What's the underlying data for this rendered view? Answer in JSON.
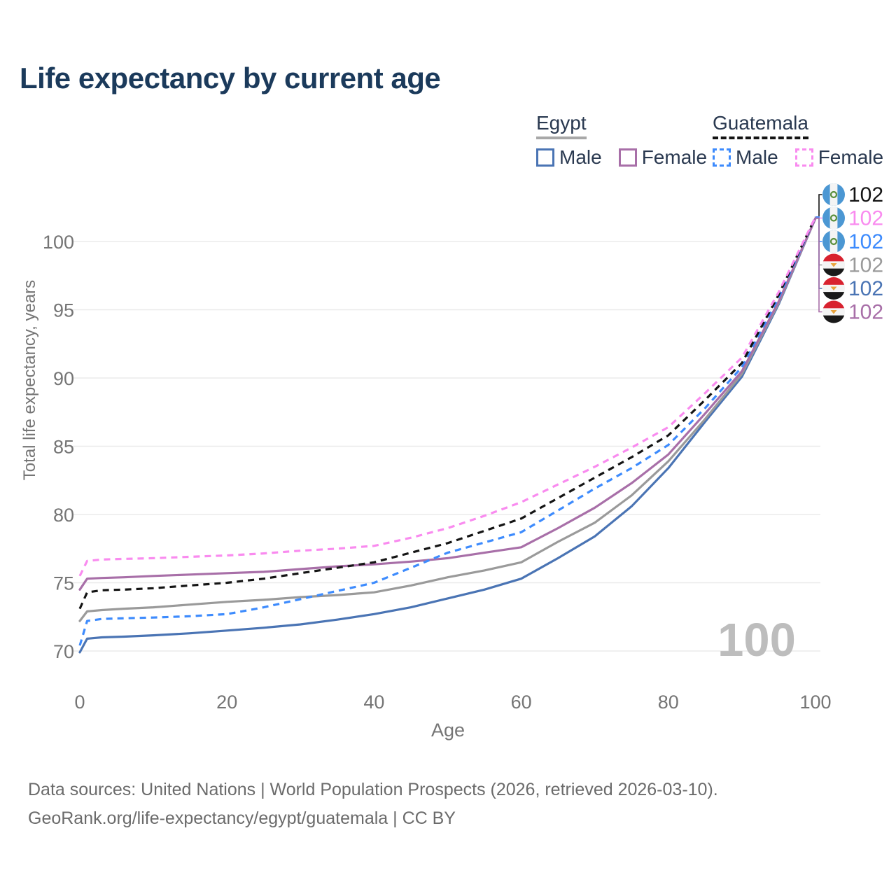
{
  "title": "Life expectancy by current age",
  "colors": {
    "title_text": "#1b3a5b",
    "legend_text": "#2a3950",
    "axis_text": "#757575",
    "grid": "#ebebeb",
    "watermark": "#bdbdbd",
    "footer_text": "#6b6b6b"
  },
  "legend": {
    "groups": [
      {
        "label": "Egypt",
        "underline_style": "solid",
        "underline_color": "#a8a8a8",
        "items": [
          {
            "label": "Male",
            "series": "egypt_male"
          },
          {
            "label": "Female",
            "series": "egypt_female"
          }
        ]
      },
      {
        "label": "Guatemala",
        "underline_style": "dashed",
        "underline_color": "#141414",
        "items": [
          {
            "label": "Male",
            "series": "guatemala_male"
          },
          {
            "label": "Female",
            "series": "guatemala_female"
          }
        ]
      }
    ]
  },
  "chart_data": {
    "type": "line",
    "title": "Life expectancy by current age",
    "xlabel": "Age",
    "ylabel": "Total life expectancy, years",
    "x_ticks": [
      0,
      20,
      40,
      60,
      80,
      100
    ],
    "y_ticks": [
      70,
      75,
      80,
      85,
      90,
      95,
      100
    ],
    "xlim": [
      0,
      100
    ],
    "ylim": [
      68.5,
      102.5
    ],
    "grid": "horizontal",
    "legend_position": "top-right",
    "watermark": "100",
    "ages": [
      0,
      1,
      3,
      6,
      10,
      15,
      20,
      25,
      30,
      35,
      40,
      45,
      50,
      55,
      60,
      65,
      70,
      75,
      80,
      85,
      90,
      95,
      100
    ],
    "series": [
      {
        "id": "egypt_male",
        "name": "Egypt Male",
        "country": "Egypt",
        "sex": "Male",
        "color": "#4a74b4",
        "line_style": "solid",
        "end_label": "102",
        "values": [
          69.9,
          70.9,
          71.0,
          71.05,
          71.15,
          71.3,
          71.5,
          71.7,
          71.95,
          72.3,
          72.7,
          73.2,
          73.85,
          74.5,
          75.3,
          76.8,
          78.4,
          80.6,
          83.4,
          86.8,
          90.1,
          95.4,
          101.7
        ]
      },
      {
        "id": "egypt_both",
        "name": "Egypt Both sexes",
        "country": "Egypt",
        "sex": "Both",
        "color": "#9a9a9a",
        "line_style": "solid",
        "end_label": "102",
        "values": [
          72.2,
          72.9,
          73.0,
          73.1,
          73.2,
          73.4,
          73.6,
          73.75,
          73.95,
          74.1,
          74.3,
          74.8,
          75.4,
          75.9,
          76.5,
          78.0,
          79.4,
          81.4,
          83.9,
          87.0,
          90.3,
          95.5,
          101.7
        ]
      },
      {
        "id": "egypt_female",
        "name": "Egypt Female",
        "country": "Egypt",
        "sex": "Female",
        "color": "#a86fa8",
        "line_style": "solid",
        "end_label": "102",
        "values": [
          74.5,
          75.3,
          75.35,
          75.4,
          75.5,
          75.6,
          75.7,
          75.8,
          76.0,
          76.2,
          76.35,
          76.55,
          76.8,
          77.2,
          77.6,
          79.0,
          80.5,
          82.3,
          84.4,
          87.4,
          90.5,
          95.6,
          101.7
        ]
      },
      {
        "id": "guatemala_male",
        "name": "Guatemala Male",
        "country": "Guatemala",
        "sex": "Male",
        "color": "#3d8bfd",
        "line_style": "dashed",
        "end_label": "102",
        "values": [
          70.4,
          72.2,
          72.35,
          72.4,
          72.45,
          72.55,
          72.7,
          73.2,
          73.8,
          74.4,
          75.0,
          76.1,
          77.2,
          77.95,
          78.7,
          80.3,
          81.9,
          83.4,
          85.1,
          87.8,
          90.8,
          95.9,
          101.8
        ]
      },
      {
        "id": "guatemala_both",
        "name": "Guatemala Both sexes",
        "country": "Guatemala",
        "sex": "Both",
        "color": "#141414",
        "line_style": "dashed",
        "end_label": "102",
        "values": [
          73.1,
          74.3,
          74.45,
          74.5,
          74.6,
          74.8,
          75.0,
          75.3,
          75.7,
          76.1,
          76.5,
          77.2,
          77.9,
          78.8,
          79.7,
          81.2,
          82.7,
          84.2,
          85.8,
          88.4,
          91.1,
          96.1,
          101.8
        ]
      },
      {
        "id": "guatemala_female",
        "name": "Guatemala Female",
        "country": "Guatemala",
        "sex": "Female",
        "color": "#f98bef",
        "line_style": "dashed",
        "end_label": "102",
        "values": [
          75.5,
          76.6,
          76.7,
          76.75,
          76.8,
          76.9,
          77.0,
          77.15,
          77.35,
          77.5,
          77.7,
          78.3,
          79.0,
          79.9,
          80.9,
          82.2,
          83.5,
          84.9,
          86.4,
          88.9,
          91.5,
          96.3,
          101.8
        ]
      }
    ]
  },
  "end_labels": [
    {
      "series": "guatemala_both",
      "value": "102",
      "flag": "guatemala"
    },
    {
      "series": "guatemala_female",
      "value": "102",
      "flag": "guatemala"
    },
    {
      "series": "guatemala_male",
      "value": "102",
      "flag": "guatemala"
    },
    {
      "series": "egypt_both",
      "value": "102",
      "flag": "egypt"
    },
    {
      "series": "egypt_male",
      "value": "102",
      "flag": "egypt"
    },
    {
      "series": "egypt_female",
      "value": "102",
      "flag": "egypt"
    }
  ],
  "footer": {
    "line1": "Data sources: United Nations | World Population Prospects (2026, retrieved 2026-03-10).",
    "line2": "GeoRank.org/life-expectancy/egypt/guatemala | CC BY"
  }
}
